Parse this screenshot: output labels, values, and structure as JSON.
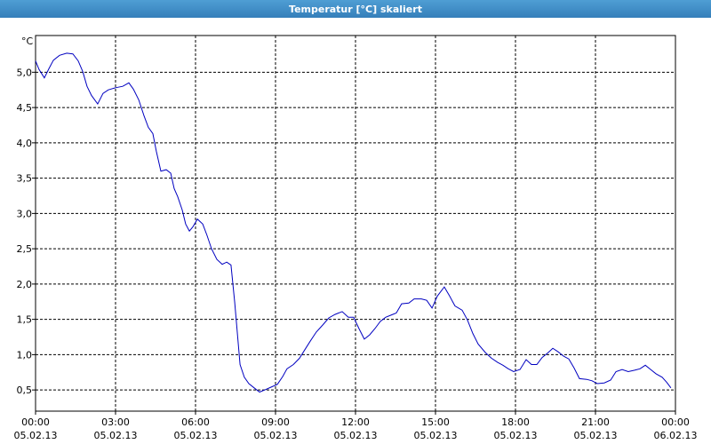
{
  "chart_data": {
    "type": "line",
    "title": "Temperatur [°C] skaliert",
    "ylabel": "°C",
    "xlim": [
      0,
      24
    ],
    "ylim": [
      0.2,
      5.52
    ],
    "grid": true,
    "xticks": [
      {
        "value": 0,
        "label": "00:00",
        "date": "05.02.13"
      },
      {
        "value": 3,
        "label": "03:00",
        "date": "05.02.13"
      },
      {
        "value": 6,
        "label": "06:00",
        "date": "05.02.13"
      },
      {
        "value": 9,
        "label": "09:00",
        "date": "05.02.13"
      },
      {
        "value": 12,
        "label": "12:00",
        "date": "05.02.13"
      },
      {
        "value": 15,
        "label": "15:00",
        "date": "05.02.13"
      },
      {
        "value": 18,
        "label": "18:00",
        "date": "05.02.13"
      },
      {
        "value": 21,
        "label": "21:00",
        "date": "05.02.13"
      },
      {
        "value": 24,
        "label": "00:00",
        "date": "06.02.13"
      }
    ],
    "yticks": [
      {
        "value": 0.5,
        "label": "0,5"
      },
      {
        "value": 1.0,
        "label": "1,0"
      },
      {
        "value": 1.5,
        "label": "1,5"
      },
      {
        "value": 2.0,
        "label": "2,0"
      },
      {
        "value": 2.5,
        "label": "2,5"
      },
      {
        "value": 3.0,
        "label": "3,0"
      },
      {
        "value": 3.5,
        "label": "3,5"
      },
      {
        "value": 4.0,
        "label": "4,0"
      },
      {
        "value": 4.5,
        "label": "4,5"
      },
      {
        "value": 5.0,
        "label": "5,0"
      }
    ],
    "x": [
      0,
      0.13,
      0.33,
      0.5,
      0.67,
      0.9,
      1.17,
      1.4,
      1.6,
      1.77,
      1.93,
      2.1,
      2.33,
      2.53,
      2.73,
      3,
      3.27,
      3.5,
      3.67,
      3.87,
      4.07,
      4.23,
      4.4,
      4.53,
      4.7,
      4.9,
      5.07,
      5.2,
      5.33,
      5.5,
      5.63,
      5.77,
      5.9,
      6.07,
      6.27,
      6.43,
      6.6,
      6.8,
      7,
      7.17,
      7.33,
      7.47,
      7.67,
      7.83,
      8,
      8.2,
      8.4,
      8.6,
      8.83,
      9.07,
      9.27,
      9.43,
      9.67,
      9.9,
      10.1,
      10.3,
      10.53,
      10.77,
      11,
      11.23,
      11.5,
      11.73,
      11.93,
      12.13,
      12.33,
      12.53,
      12.73,
      12.93,
      13.13,
      13.33,
      13.53,
      13.73,
      14,
      14.2,
      14.47,
      14.67,
      14.87,
      15.07,
      15.33,
      15.53,
      15.73,
      16,
      16.2,
      16.4,
      16.6,
      16.87,
      17.1,
      17.33,
      17.53,
      17.73,
      17.93,
      18.17,
      18.4,
      18.6,
      18.8,
      19,
      19.2,
      19.4,
      19.6,
      19.8,
      20,
      20.2,
      20.4,
      20.67,
      20.87,
      21.07,
      21.33,
      21.57,
      21.77,
      22,
      22.23,
      22.47,
      22.67,
      22.87,
      23.07,
      23.27,
      23.5,
      23.67,
      23.83
    ],
    "series": [
      {
        "color": "#0000c0",
        "values": [
          5.16,
          5.04,
          4.92,
          5.05,
          5.17,
          5.24,
          5.27,
          5.26,
          5.16,
          5.01,
          4.8,
          4.67,
          4.55,
          4.7,
          4.75,
          4.78,
          4.8,
          4.85,
          4.76,
          4.61,
          4.38,
          4.22,
          4.13,
          3.88,
          3.6,
          3.62,
          3.57,
          3.35,
          3.24,
          3.05,
          2.85,
          2.75,
          2.81,
          2.92,
          2.85,
          2.69,
          2.5,
          2.35,
          2.28,
          2.31,
          2.27,
          1.74,
          0.86,
          0.68,
          0.59,
          0.53,
          0.47,
          0.5,
          0.54,
          0.58,
          0.69,
          0.8,
          0.86,
          0.95,
          1.07,
          1.19,
          1.32,
          1.42,
          1.52,
          1.57,
          1.61,
          1.53,
          1.53,
          1.37,
          1.22,
          1.28,
          1.37,
          1.47,
          1.53,
          1.56,
          1.59,
          1.72,
          1.73,
          1.79,
          1.79,
          1.77,
          1.66,
          1.83,
          1.96,
          1.83,
          1.69,
          1.63,
          1.49,
          1.3,
          1.15,
          1.03,
          0.95,
          0.89,
          0.85,
          0.8,
          0.76,
          0.79,
          0.93,
          0.86,
          0.86,
          0.96,
          1.02,
          1.09,
          1.04,
          0.98,
          0.94,
          0.81,
          0.66,
          0.65,
          0.63,
          0.59,
          0.6,
          0.64,
          0.76,
          0.79,
          0.76,
          0.78,
          0.8,
          0.85,
          0.79,
          0.73,
          0.68,
          0.61,
          0.53
        ]
      }
    ]
  }
}
